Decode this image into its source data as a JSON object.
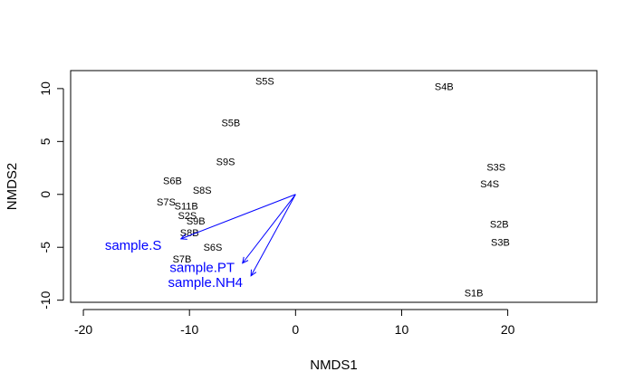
{
  "chart_data": {
    "type": "scatter",
    "xlabel": "NMDS1",
    "ylabel": "NMDS2",
    "xlim": [
      -21.2,
      28.4
    ],
    "ylim": [
      -10.2,
      11.7
    ],
    "x_ticks": [
      -20,
      -10,
      0,
      10,
      20
    ],
    "x_tick_labels": [
      "-20",
      "-10",
      "0",
      "10",
      "20"
    ],
    "y_ticks": [
      -10,
      -5,
      0,
      5,
      10
    ],
    "y_tick_labels": [
      "-10",
      "-5",
      "0",
      "5",
      "10"
    ],
    "grid": false,
    "points": [
      {
        "label": "S5S",
        "x": -2.9,
        "y": 10.7
      },
      {
        "label": "S4B",
        "x": 14.0,
        "y": 10.2
      },
      {
        "label": "S5B",
        "x": -6.1,
        "y": 6.8
      },
      {
        "label": "S9S",
        "x": -6.6,
        "y": 3.1
      },
      {
        "label": "S3S",
        "x": 18.9,
        "y": 2.6
      },
      {
        "label": "S6B",
        "x": -11.6,
        "y": 1.3
      },
      {
        "label": "S4S",
        "x": 18.3,
        "y": 1.0
      },
      {
        "label": "S8S",
        "x": -8.8,
        "y": 0.4
      },
      {
        "label": "S7S",
        "x": -12.2,
        "y": -0.7
      },
      {
        "label": "S11B",
        "x": -10.3,
        "y": -1.1
      },
      {
        "label": "S2S",
        "x": -10.2,
        "y": -2.0
      },
      {
        "label": "S9B",
        "x": -9.4,
        "y": -2.5
      },
      {
        "label": "S2B",
        "x": 19.2,
        "y": -2.8
      },
      {
        "label": "S8B",
        "x": -10.0,
        "y": -3.6
      },
      {
        "label": "S3B",
        "x": 19.3,
        "y": -4.5
      },
      {
        "label": "S6S",
        "x": -7.8,
        "y": -5.0
      },
      {
        "label": "S7B",
        "x": -10.7,
        "y": -6.1
      },
      {
        "label": "S1B",
        "x": 16.8,
        "y": -9.3
      }
    ],
    "vectors": [
      {
        "name": "sample.S",
        "x": -10.8,
        "y": -4.2,
        "label_x": -15.3,
        "label_y": -4.8
      },
      {
        "name": "sample.PT",
        "x": -5.0,
        "y": -6.5,
        "label_x": -8.8,
        "label_y": -6.9
      },
      {
        "name": "sample.NH4",
        "x": -4.2,
        "y": -7.7,
        "label_x": -8.5,
        "label_y": -8.3
      }
    ],
    "vector_origin": [
      0,
      0
    ],
    "vector_color": "#0000ff",
    "point_label_color": "#000000"
  }
}
